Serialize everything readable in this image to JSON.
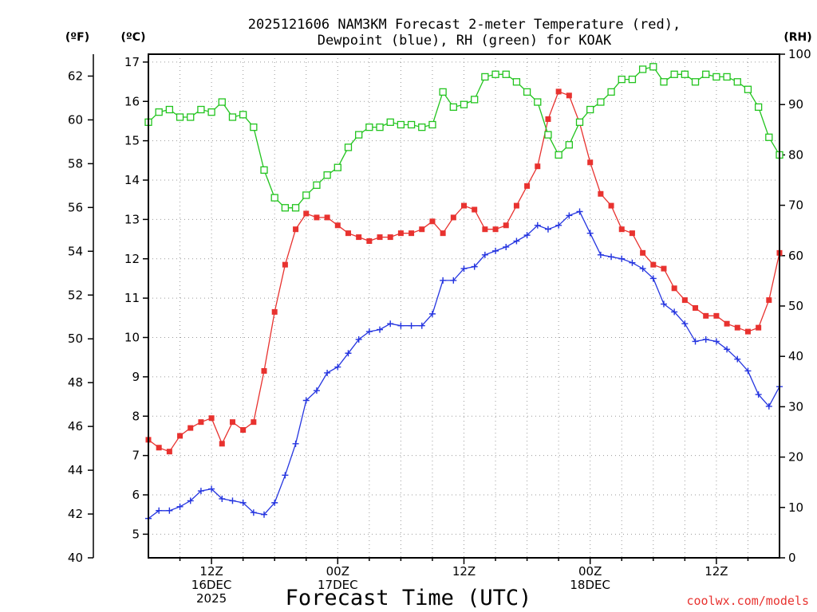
{
  "chart_data": {
    "type": "line",
    "title_lines": [
      "2025121606 NAM3KM Forecast 2-meter Temperature (red),",
      "Dewpoint (blue), RH (green) for KOAK"
    ],
    "xlabel": "Forecast Time (UTC)",
    "credit": "coolwx.com/models",
    "axes": {
      "fahrenheit": {
        "unit_label": "(ºF)",
        "range": [
          40,
          63
        ],
        "ticks": [
          "40",
          "42",
          "44",
          "46",
          "48",
          "50",
          "52",
          "54",
          "56",
          "58",
          "60",
          "62"
        ]
      },
      "celsius": {
        "unit_label": "(ºC)",
        "range": [
          4.4,
          17.2
        ],
        "ticks": [
          "5",
          "6",
          "7",
          "8",
          "9",
          "10",
          "11",
          "12",
          "13",
          "14",
          "15",
          "16",
          "17"
        ]
      },
      "rh": {
        "unit_label": "(RH)",
        "range": [
          0,
          100
        ],
        "ticks": [
          "0",
          "10",
          "20",
          "30",
          "40",
          "50",
          "60",
          "70",
          "80",
          "90",
          "100"
        ]
      },
      "x": {
        "range_hours": [
          6,
          66
        ],
        "ticks": [
          {
            "hour": 12,
            "lines": [
              "12Z",
              "16DEC",
              "2025"
            ]
          },
          {
            "hour": 24,
            "lines": [
              "00Z",
              "17DEC"
            ]
          },
          {
            "hour": 36,
            "lines": [
              "12Z"
            ]
          },
          {
            "hour": 48,
            "lines": [
              "00Z",
              "18DEC"
            ]
          },
          {
            "hour": 60,
            "lines": [
              "12Z"
            ]
          }
        ]
      }
    },
    "hours": [
      6,
      7,
      8,
      9,
      10,
      11,
      12,
      13,
      14,
      15,
      16,
      17,
      18,
      19,
      20,
      21,
      22,
      23,
      24,
      25,
      26,
      27,
      28,
      29,
      30,
      31,
      32,
      33,
      34,
      35,
      36,
      37,
      38,
      39,
      40,
      41,
      42,
      43,
      44,
      45,
      46,
      47,
      48,
      49,
      50,
      51,
      52,
      53,
      54,
      55,
      56,
      57,
      58,
      59,
      60,
      61,
      62,
      63,
      64,
      65,
      66
    ],
    "series": [
      {
        "name": "Temperature",
        "color": "#e8322f",
        "axis": "celsius",
        "marker": "filled-square",
        "values": [
          7.4,
          7.2,
          7.1,
          7.5,
          7.7,
          7.85,
          7.95,
          7.3,
          7.85,
          7.65,
          7.85,
          9.15,
          10.65,
          11.85,
          12.75,
          13.15,
          13.05,
          13.05,
          12.85,
          12.65,
          12.55,
          12.45,
          12.55,
          12.55,
          12.65,
          12.65,
          12.75,
          12.95,
          12.65,
          13.05,
          13.35,
          13.25,
          12.75,
          12.75,
          12.85,
          13.35,
          13.85,
          14.35,
          15.55,
          16.25,
          16.15,
          15.45,
          14.45,
          13.65,
          13.35,
          12.75,
          12.65,
          12.15,
          11.85,
          11.75,
          11.25,
          10.95,
          10.75,
          10.55,
          10.55,
          10.35,
          10.25,
          10.15,
          10.25,
          10.95,
          12.15
        ]
      },
      {
        "name": "Dewpoint",
        "color": "#2535e0",
        "axis": "celsius",
        "marker": "plus",
        "values": [
          5.4,
          5.6,
          5.6,
          5.7,
          5.85,
          6.1,
          6.15,
          5.9,
          5.85,
          5.8,
          5.55,
          5.5,
          5.8,
          6.5,
          7.3,
          8.4,
          8.65,
          9.1,
          9.25,
          9.6,
          9.95,
          10.15,
          10.2,
          10.35,
          10.3,
          10.3,
          10.3,
          10.6,
          11.45,
          11.45,
          11.75,
          11.8,
          12.1,
          12.2,
          12.3,
          12.45,
          12.6,
          12.85,
          12.75,
          12.85,
          13.1,
          13.2,
          12.65,
          12.1,
          12.05,
          12.0,
          11.9,
          11.75,
          11.5,
          10.85,
          10.65,
          10.35,
          9.9,
          9.95,
          9.9,
          9.7,
          9.45,
          9.15,
          8.55,
          8.25,
          8.75
        ]
      },
      {
        "name": "RH",
        "color": "#22c41e",
        "axis": "rh",
        "marker": "open-square",
        "values": [
          86.5,
          88.5,
          89.0,
          87.5,
          87.5,
          89.0,
          88.5,
          90.5,
          87.5,
          88.0,
          85.5,
          77.0,
          71.5,
          69.5,
          69.5,
          72.0,
          74.0,
          76.0,
          77.5,
          81.5,
          84.0,
          85.5,
          85.5,
          86.5,
          86.0,
          86.0,
          85.5,
          86.0,
          92.5,
          89.5,
          90.0,
          91.0,
          95.5,
          96.0,
          96.0,
          94.5,
          92.5,
          90.5,
          84.0,
          80.0,
          82.0,
          86.5,
          89.0,
          90.5,
          92.5,
          95.0,
          95.0,
          97.0,
          97.5,
          94.5,
          96.0,
          96.0,
          94.5,
          96.0,
          95.5,
          95.5,
          94.5,
          93.0,
          89.5,
          83.5,
          80.0
        ]
      }
    ]
  }
}
